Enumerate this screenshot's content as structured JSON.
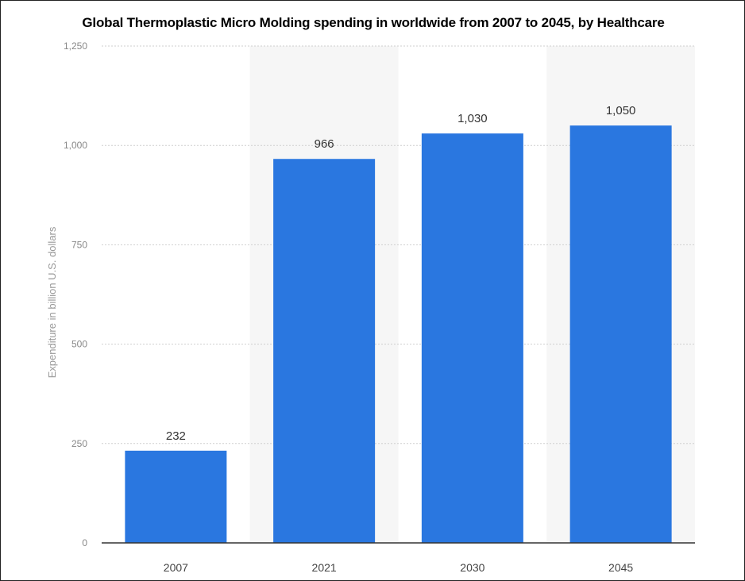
{
  "chart_data": {
    "type": "bar",
    "title": "Global Thermoplastic Micro Molding spending in worldwide from 2007 to 2045, by Healthcare",
    "xlabel": "",
    "ylabel": "Expenditure in billion U.S. dollars",
    "categories": [
      "2007",
      "2021",
      "2030",
      "2045"
    ],
    "values": [
      232,
      966,
      1030,
      1050
    ],
    "data_labels": [
      "232",
      "966",
      "1,030",
      "1,050"
    ],
    "yticks": [
      0,
      250,
      500,
      750,
      1000,
      1250
    ],
    "ytick_labels": [
      "0",
      "250",
      "500",
      "750",
      "1,000",
      "1,250"
    ],
    "ylim": [
      0,
      1250
    ],
    "grid": true,
    "bar_color": "#2a77e0"
  }
}
